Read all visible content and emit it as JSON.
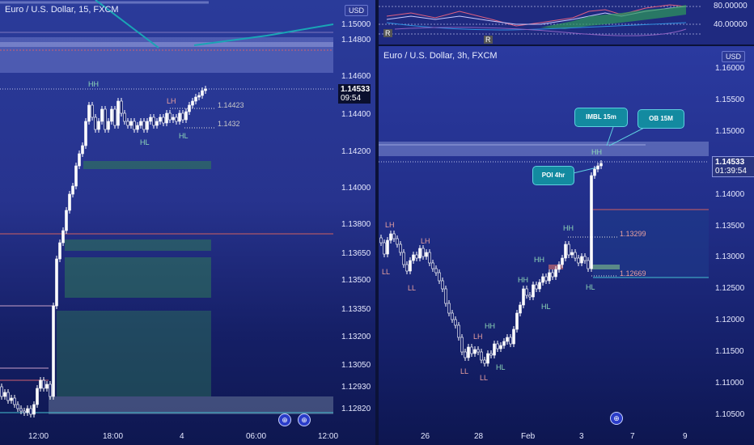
{
  "left_chart": {
    "title": "Euro / U.S. Dollar, 15, FXCM",
    "currency": "USD",
    "price_labels": [
      "1.15000",
      "1.14800",
      "1.14600",
      "1.14400",
      "1.14200",
      "1.14000",
      "1.13800",
      "1.13650",
      "1.13500",
      "1.13350",
      "1.13200",
      "1.13050",
      "1.12930",
      "1.12820"
    ],
    "current_price": "1.14533",
    "countdown": "09:54",
    "time_labels": [
      "12:00",
      "18:00",
      "4",
      "06:00",
      "12:00"
    ],
    "annotations": {
      "hh": "HH",
      "lh": "LH",
      "hl1": "HL",
      "hl2": "HL",
      "lvl1": "1.14423",
      "lvl2": "1.1432"
    },
    "icon": "globe-icon"
  },
  "indicator_pane": {
    "labels": [
      "80.00000",
      "40.00000"
    ],
    "markers": [
      "R",
      "R"
    ]
  },
  "right_chart": {
    "title": "Euro / U.S. Dollar, 3h, FXCM",
    "currency": "USD",
    "price_labels": [
      "1.16000",
      "1.15500",
      "1.15000",
      "1.14500",
      "1.14000",
      "1.13500",
      "1.13000",
      "1.12500",
      "1.12000",
      "1.11500",
      "1.11000",
      "1.10500"
    ],
    "current_price": "1.14533",
    "countdown": "01:39:54",
    "time_labels": [
      "26",
      "28",
      "Feb",
      "3",
      "7",
      "9"
    ],
    "callouts": {
      "imbl": "IMBL 15m",
      "ob": "OB 15M",
      "poi": "POI 4hr"
    },
    "annotations": {
      "lh1": "LH",
      "ll1": "LL",
      "ll2": "LL",
      "lh2": "LH",
      "ll3": "LL",
      "lh3": "LH",
      "ll4": "LL",
      "hh1": "HH",
      "hl1": "HL",
      "hh2": "HH",
      "hh3": "HH",
      "hl2": "HL",
      "hh4": "HH",
      "hh5": "HH",
      "hl3": "HL",
      "lvl1": "1.13299",
      "lvl2": "1.12669"
    },
    "icon": "globe-icon"
  },
  "colors": {
    "bg": "#0b1440",
    "bull": "#ffffff",
    "bear": "#ffffff",
    "green_zone": "#2f7a58",
    "accent": "#138aa0"
  }
}
